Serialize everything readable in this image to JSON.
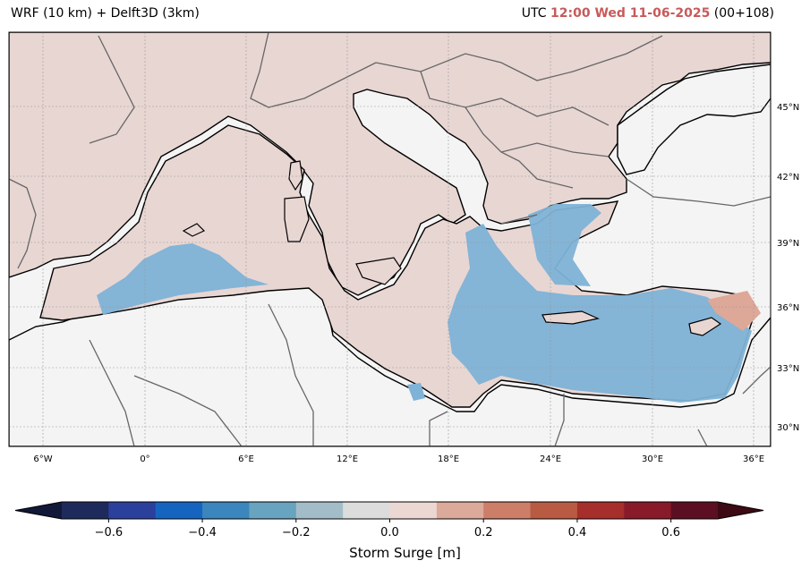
{
  "title": {
    "left": "WRF (10 km) + Delft3D (3km)",
    "utc_prefix": "UTC",
    "datetime": "12:00 Wed 11-06-2025",
    "forecast_step": "(00+108)"
  },
  "map": {
    "lat_labels": [
      "45°N",
      "42°N",
      "39°N",
      "36°N",
      "33°N",
      "30°N"
    ],
    "lon_labels": [
      "6°W",
      "0°",
      "6°E",
      "12°E",
      "18°E",
      "24°E",
      "30°E",
      "36°E"
    ],
    "colors": {
      "land": "#e8d6d3",
      "sea_outside": "#f4f4f4",
      "surge_neg": "#7eb2d6",
      "surge_pos": "#dda898"
    }
  },
  "colorbar": {
    "label": "Storm Surge [m]",
    "tick_labels": [
      "−0.6",
      "−0.4",
      "−0.2",
      "0.0",
      "0.2",
      "0.4",
      "0.6"
    ],
    "ticks": [
      -0.6,
      -0.4,
      -0.2,
      0.0,
      0.2,
      0.4,
      0.6
    ],
    "range": [
      -0.7,
      0.7
    ],
    "extend": "both",
    "colors": [
      "#1f2a5c",
      "#2b3f9c",
      "#1565c0",
      "#3a86bd",
      "#68a3c0",
      "#a3bdc8",
      "#dcdcdc",
      "#ecd8d3",
      "#dcaa9a",
      "#cc7e68",
      "#b95a42",
      "#a62e2b",
      "#881a2a",
      "#5c0f22"
    ],
    "extend_low_color": "#111838",
    "extend_high_color": "#3d0a14"
  }
}
